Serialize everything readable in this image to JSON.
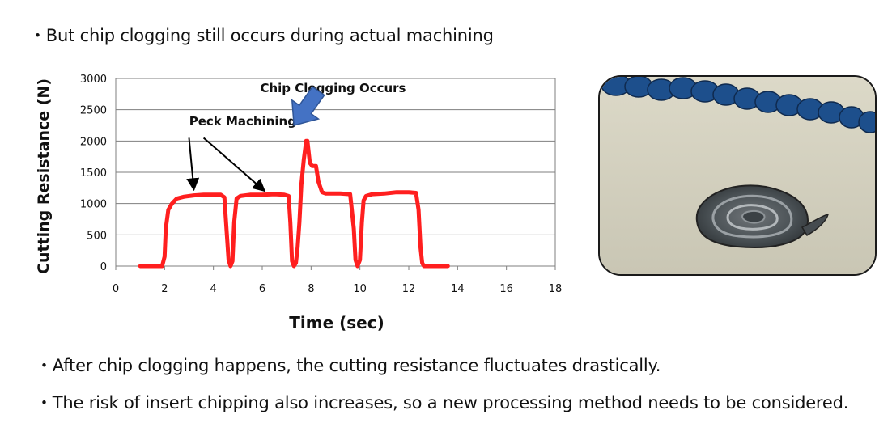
{
  "bullets": [
    "・But chip clogging still occurs during actual machining",
    "・After chip clogging happens, the cutting resistance fluctuates drastically.",
    "・The risk of insert chipping also increases, so a new processing method needs to be considered."
  ],
  "chart_data": {
    "type": "line",
    "xlabel": "Time (sec)",
    "ylabel": "Cutting Resistance (N)",
    "xlim": [
      0,
      18
    ],
    "ylim": [
      0,
      3000
    ],
    "xticks": [
      0,
      2,
      4,
      6,
      8,
      10,
      12,
      14,
      16,
      18
    ],
    "yticks": [
      0,
      500,
      1000,
      1500,
      2000,
      2500,
      3000
    ],
    "grid": "horizontal",
    "series": [
      {
        "color": "#ff1f1f",
        "x": [
          1.0,
          1.9,
          2.0,
          2.05,
          2.15,
          2.3,
          2.5,
          2.8,
          3.2,
          3.6,
          4.0,
          4.3,
          4.45,
          4.55,
          4.62,
          4.7,
          4.78,
          4.85,
          4.95,
          5.1,
          5.5,
          6.0,
          6.5,
          6.9,
          7.08,
          7.15,
          7.22,
          7.3,
          7.38,
          7.45,
          7.52,
          7.6,
          7.7,
          7.8,
          7.85,
          7.95,
          8.05,
          8.2,
          8.3,
          8.45,
          8.6,
          8.8,
          9.2,
          9.6,
          9.75,
          9.82,
          9.9,
          10.0,
          10.08,
          10.15,
          10.25,
          10.5,
          11.0,
          11.5,
          12.0,
          12.3,
          12.4,
          12.48,
          12.55,
          12.62,
          12.7,
          12.9,
          13.3,
          13.6
        ],
        "y": [
          0,
          0,
          150,
          600,
          900,
          1000,
          1080,
          1110,
          1130,
          1140,
          1140,
          1140,
          1100,
          500,
          100,
          0,
          80,
          700,
          1080,
          1120,
          1140,
          1140,
          1150,
          1140,
          1120,
          700,
          80,
          0,
          50,
          300,
          700,
          1300,
          1700,
          2000,
          2000,
          1650,
          1600,
          1600,
          1350,
          1180,
          1160,
          1160,
          1160,
          1150,
          600,
          100,
          0,
          100,
          700,
          1050,
          1120,
          1150,
          1160,
          1180,
          1180,
          1170,
          900,
          300,
          50,
          0,
          0,
          0,
          0,
          0
        ]
      }
    ],
    "annotations": [
      {
        "text": "Peck Machining",
        "x": 5.2,
        "y": 2250,
        "arrows": [
          [
            3.0,
            2050,
            3.2,
            1220
          ],
          [
            3.6,
            2050,
            6.1,
            1200
          ]
        ]
      },
      {
        "text": "Chip Clogging Occurs",
        "x": 8.9,
        "y": 2780,
        "arrow_color": "#4472c4",
        "arrow": [
          8.3,
          2800,
          7.3,
          2250
        ]
      }
    ]
  },
  "photo": {
    "alt": ""
  }
}
